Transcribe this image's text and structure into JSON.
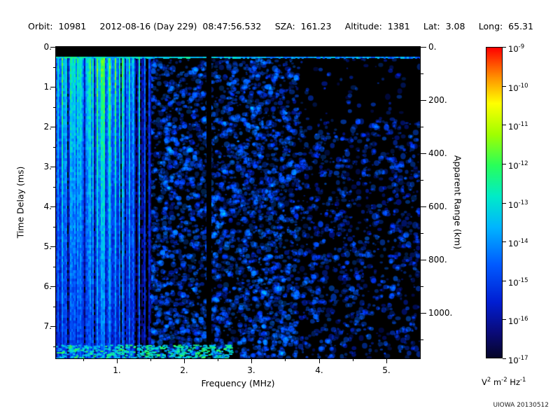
{
  "header": {
    "fields": [
      {
        "key": "orbit",
        "label": "Orbit:",
        "value": "10981"
      },
      {
        "key": "date",
        "label": "",
        "value": "2012-08-16 (Day 229)  08:47:56.532"
      },
      {
        "key": "sza",
        "label": "SZA:",
        "value": "161.23"
      },
      {
        "key": "altitude",
        "label": "Altitude:",
        "value": "1381"
      },
      {
        "key": "lat",
        "label": "Lat:",
        "value": "3.08"
      },
      {
        "key": "long",
        "label": "Long:",
        "value": "65.31"
      }
    ]
  },
  "chart_data": {
    "type": "heatmap",
    "description": "Radar sounder ionogram: received spectral density vs frequency and time delay; bright vertical plasma-oscillation stripes below 1.5 MHz, surface echo line near 0.27 ms, diffuse blue noise at higher frequencies, dark instrument gap near 2.37 MHz",
    "xlabel": "Frequency (MHz)",
    "ylabel_left": "Time Delay (ms)",
    "ylabel_right": "Apparent Range (km)",
    "x_range_mhz": [
      0.1,
      5.5
    ],
    "y_range_ms": [
      0.0,
      7.8
    ],
    "x_ticks_mhz": [
      1,
      2,
      3,
      4,
      5
    ],
    "x_tick_labels": [
      "1.",
      "2.",
      "3.",
      "4.",
      "5."
    ],
    "y_ticks_ms": [
      0,
      1,
      2,
      3,
      4,
      5,
      6,
      7
    ],
    "y_tick_labels": [
      "0.",
      "1.",
      "2.",
      "3.",
      "4.",
      "5.",
      "6.",
      "7."
    ],
    "right_axis_ticks_km": [
      0,
      200,
      400,
      600,
      800,
      1000
    ],
    "right_axis_tick_labels": [
      "0.",
      "200.",
      "400.",
      "600.",
      "800.",
      "1000."
    ],
    "km_per_ms": 150,
    "colorbar": {
      "unit": "V^2 m^-2 Hz^-1",
      "scale": "log10",
      "max": "1e-9",
      "min": "1e-17",
      "tick_exponents": [
        -9,
        -10,
        -11,
        -12,
        -13,
        -14,
        -15,
        -16,
        -17
      ],
      "colormap_stops": [
        [
          0.0,
          [
            5,
            5,
            40
          ]
        ],
        [
          0.08,
          [
            10,
            10,
            120
          ]
        ],
        [
          0.18,
          [
            0,
            30,
            210
          ]
        ],
        [
          0.3,
          [
            0,
            90,
            255
          ]
        ],
        [
          0.42,
          [
            0,
            180,
            255
          ]
        ],
        [
          0.52,
          [
            0,
            235,
            200
          ]
        ],
        [
          0.62,
          [
            40,
            255,
            90
          ]
        ],
        [
          0.72,
          [
            160,
            255,
            0
          ]
        ],
        [
          0.82,
          [
            255,
            255,
            0
          ]
        ],
        [
          0.9,
          [
            255,
            150,
            0
          ]
        ],
        [
          1.0,
          [
            255,
            0,
            0
          ]
        ]
      ]
    },
    "features": {
      "seed": 20130512,
      "background": "#000000",
      "surface_echo": {
        "delay_ms": 0.27,
        "level": 0.52
      },
      "ionosphere_stripes": {
        "f_min": 0.1,
        "f_max": 1.5,
        "top_level": 0.62,
        "bottom_level": 0.28,
        "fade_start_mhz": 1.05
      },
      "diffuse_speckle": [
        {
          "f_min": 1.5,
          "f_max": 3.7,
          "delay_min": 0.32,
          "delay_max": 7.8,
          "density": 1.1,
          "level": 0.26
        },
        {
          "f_min": 3.7,
          "f_max": 5.5,
          "delay_min": 1.8,
          "delay_max": 7.8,
          "density": 0.6,
          "level": 0.24
        },
        {
          "f_min": 3.7,
          "f_max": 5.5,
          "delay_min": 0.3,
          "delay_max": 1.8,
          "density": 0.12,
          "level": 0.22
        }
      ],
      "dark_gap_mhz": 2.37,
      "bottom_band": {
        "delay_min": 7.45,
        "f_max": 2.7,
        "level": 0.5
      }
    },
    "credit": "UIOWA 20130512"
  }
}
